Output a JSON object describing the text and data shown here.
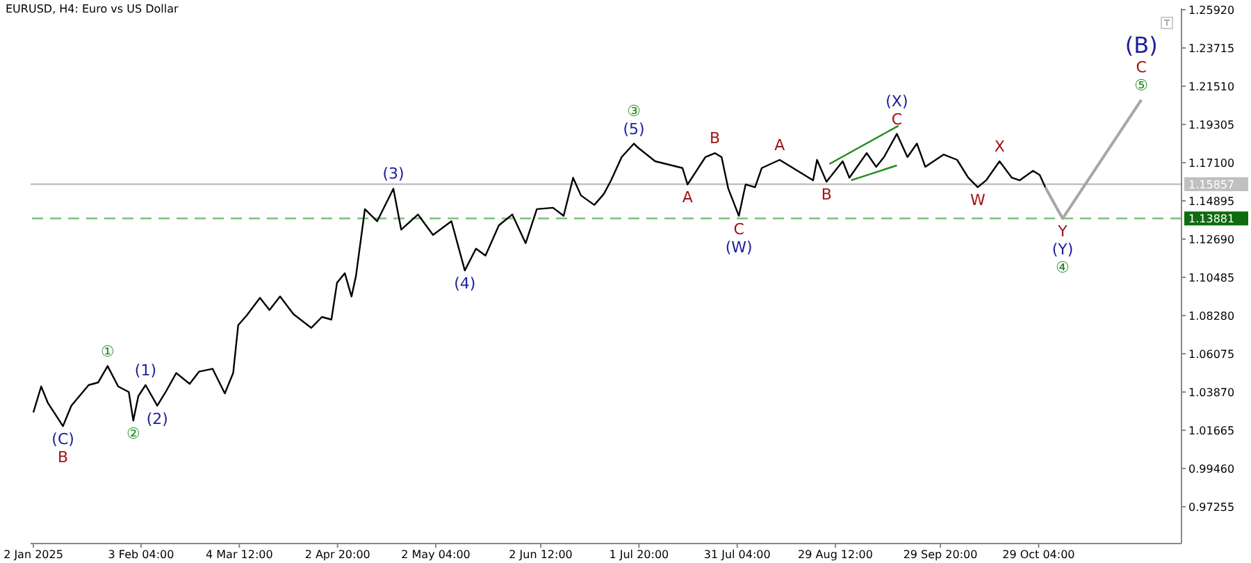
{
  "chart_data": {
    "type": "line",
    "title": "EURUSD, H4:  Euro vs US Dollar",
    "marker": "none",
    "xlim": [
      "2025-01-01T04:00",
      "2025-12-10T20:00"
    ],
    "xticks": [
      {
        "value": "2025-01-02T00:00",
        "label": "2 Jan 2025"
      },
      {
        "value": "2025-02-03T04:00",
        "label": "3 Feb 04:00"
      },
      {
        "value": "2025-03-04T12:00",
        "label": "4 Mar 12:00"
      },
      {
        "value": "2025-04-02T20:00",
        "label": "2 Apr 20:00"
      },
      {
        "value": "2025-05-02T04:00",
        "label": "2 May 04:00"
      },
      {
        "value": "2025-06-02T12:00",
        "label": "2 Jun 12:00"
      },
      {
        "value": "2025-07-01T20:00",
        "label": "1 Jul 20:00"
      },
      {
        "value": "2025-07-31T04:00",
        "label": "31 Jul 04:00"
      },
      {
        "value": "2025-08-29T12:00",
        "label": "29 Aug 12:00"
      },
      {
        "value": "2025-09-29T20:00",
        "label": "29 Sep 20:00"
      },
      {
        "value": "2025-10-29T04:00",
        "label": "29 Oct 04:00"
      }
    ],
    "ylim": [
      0.9513,
      1.26
    ],
    "yticks": [
      {
        "value": 0.97255,
        "label": "0.97255"
      },
      {
        "value": 0.9946,
        "label": "0.99460"
      },
      {
        "value": 1.01665,
        "label": "1.01665"
      },
      {
        "value": 1.0387,
        "label": "1.03870"
      },
      {
        "value": 1.06075,
        "label": "1.06075"
      },
      {
        "value": 1.0828,
        "label": "1.08280"
      },
      {
        "value": 1.10485,
        "label": "1.10485"
      },
      {
        "value": 1.1269,
        "label": "1.12690"
      },
      {
        "value": 1.14895,
        "label": "1.14895"
      },
      {
        "value": 1.171,
        "label": "1.17100"
      },
      {
        "value": 1.19305,
        "label": "1.19305"
      },
      {
        "value": 1.2151,
        "label": "1.21510"
      },
      {
        "value": 1.23715,
        "label": "1.23715"
      },
      {
        "value": 1.2592,
        "label": "1.25920"
      }
    ],
    "series": [
      {
        "color": "#000000",
        "line_style": "solid",
        "x": [
          "2025-01-02T00:00",
          "2025-01-04T08:00",
          "2025-01-06T08:00",
          "2025-01-10T20:00",
          "2025-01-13T08:00",
          "2025-01-18T12:00",
          "2025-01-21T08:00",
          "2025-01-24T04:00",
          "2025-01-27T08:00",
          "2025-01-30T12:00",
          "2025-01-31T20:00",
          "2025-02-02T08:00",
          "2025-02-04T12:00",
          "2025-02-08T00:00",
          "2025-02-10T12:00",
          "2025-02-13T16:00",
          "2025-02-17T16:00",
          "2025-02-20T12:00",
          "2025-02-24T12:00",
          "2025-02-28T04:00",
          "2025-03-02T16:00",
          "2025-03-04T04:00",
          "2025-03-06T16:00",
          "2025-03-10T16:00",
          "2025-03-13T12:00",
          "2025-03-16T16:00",
          "2025-03-20T16:00",
          "2025-03-26T00:00",
          "2025-03-29T04:00",
          "2025-04-01T00:00",
          "2025-04-02T16:00",
          "2025-04-05T00:00",
          "2025-04-07T00:00",
          "2025-04-08T08:00",
          "2025-04-11T00:00",
          "2025-04-14T16:00",
          "2025-04-19T12:00",
          "2025-04-21T20:00",
          "2025-04-26T20:00",
          "2025-05-01T08:00",
          "2025-05-06T20:00",
          "2025-05-10T20:00",
          "2025-05-14T04:00",
          "2025-05-17T00:00",
          "2025-05-21T00:00",
          "2025-05-25T00:00",
          "2025-05-29T00:00",
          "2025-06-01T08:00",
          "2025-06-06T04:00",
          "2025-06-09T08:00",
          "2025-06-12T04:00",
          "2025-06-14T12:00",
          "2025-06-18T12:00",
          "2025-06-21T08:00",
          "2025-06-23T12:00",
          "2025-06-26T16:00",
          "2025-06-30T08:00",
          "2025-07-01T12:00",
          "2025-07-06T16:00",
          "2025-07-14T20:00",
          "2025-07-16T08:00",
          "2025-07-21T16:00",
          "2025-07-24T12:00",
          "2025-07-26T12:00",
          "2025-07-28T12:00",
          "2025-07-31T16:00",
          "2025-08-02T16:00",
          "2025-08-05T12:00",
          "2025-08-07T12:00",
          "2025-08-12T20:00",
          "2025-08-16T20:00",
          "2025-08-22T20:00",
          "2025-08-24T00:00",
          "2025-08-26T20:00",
          "2025-08-31T16:00",
          "2025-09-02T16:00",
          "2025-09-07T20:00",
          "2025-09-10T16:00",
          "2025-09-13T00:00",
          "2025-09-16T20:00",
          "2025-09-20T00:00",
          "2025-09-22T20:00",
          "2025-09-25T08:00",
          "2025-09-30T20:00",
          "2025-10-04T20:00",
          "2025-10-08T04:00",
          "2025-10-11T00:00",
          "2025-10-13T12:00",
          "2025-10-17T12:00",
          "2025-10-21T04:00",
          "2025-10-23T12:00",
          "2025-10-27T12:00",
          "2025-10-29T12:00",
          "2025-10-31T04:00"
        ],
        "values": [
          1.0269,
          1.0419,
          1.0324,
          1.019,
          1.0308,
          1.0427,
          1.0442,
          1.0537,
          1.0419,
          1.0387,
          1.0222,
          1.0363,
          1.0427,
          1.0308,
          1.0387,
          1.0497,
          1.0434,
          1.0505,
          1.0521,
          1.0379,
          1.0497,
          1.0773,
          1.0828,
          1.093,
          1.086,
          1.0938,
          1.0836,
          1.0757,
          1.082,
          1.0805,
          1.1017,
          1.1072,
          1.0938,
          1.1057,
          1.1442,
          1.1372,
          1.156,
          1.1324,
          1.1411,
          1.1293,
          1.1372,
          1.1088,
          1.1214,
          1.1174,
          1.1348,
          1.1411,
          1.1245,
          1.1442,
          1.145,
          1.1403,
          1.1623,
          1.1521,
          1.1466,
          1.1529,
          1.1608,
          1.1742,
          1.182,
          1.1797,
          1.1718,
          1.1679,
          1.1584,
          1.1742,
          1.1765,
          1.1742,
          1.156,
          1.1403,
          1.1584,
          1.1568,
          1.1679,
          1.1726,
          1.1679,
          1.1608,
          1.1726,
          1.16,
          1.1718,
          1.1623,
          1.1765,
          1.1686,
          1.1742,
          1.1876,
          1.1742,
          1.182,
          1.1686,
          1.1757,
          1.1726,
          1.1623,
          1.1568,
          1.1608,
          1.1718,
          1.1623,
          1.1608,
          1.1663,
          1.1639,
          1.1568
        ]
      },
      {
        "color": "#a6a6a6",
        "line_style": "solid",
        "x": [
          "2025-10-31T04:00",
          "2025-11-05T08:00",
          "2025-11-28T20:00"
        ],
        "values": [
          1.1568,
          1.1388,
          1.2072
        ]
      },
      {
        "color": "#1e8c1e",
        "line_style": "solid",
        "x": [
          "2025-08-27T16:00",
          "2025-09-17T08:00"
        ],
        "values": [
          1.1702,
          1.1923
        ]
      },
      {
        "color": "#1e8c1e",
        "line_style": "solid",
        "x": [
          "2025-09-03T04:00",
          "2025-09-16T20:00"
        ],
        "values": [
          1.1608,
          1.1694
        ]
      }
    ],
    "ref_lines": [
      {
        "axis": "y",
        "value": 1.15857,
        "label": "1.15857",
        "color": "#c0c0c0",
        "line_style": "solid"
      },
      {
        "axis": "y",
        "value": 1.13881,
        "label": "1.13881",
        "color": "#7cbf7c",
        "line_style": "dashed"
      }
    ],
    "annotations": [
      {
        "text": "(C)",
        "x": "2025-01-10T20:00",
        "y": 1.019
      },
      {
        "text": "B",
        "x": "2025-01-10T20:00",
        "y": 1.019
      },
      {
        "text": "①",
        "x": "2025-01-24T04:00",
        "y": 1.0537
      },
      {
        "text": "(1)",
        "x": "2025-02-04T12:00",
        "y": 1.0427
      },
      {
        "text": "②",
        "x": "2025-01-31T20:00",
        "y": 1.0222
      },
      {
        "text": "(2)",
        "x": "2025-02-08T00:00",
        "y": 1.0308
      },
      {
        "text": "(3)",
        "x": "2025-04-19T12:00",
        "y": 1.156
      },
      {
        "text": "(4)",
        "x": "2025-05-10T20:00",
        "y": 1.1088
      },
      {
        "text": "(5)",
        "x": "2025-06-30T08:00",
        "y": 1.182
      },
      {
        "text": "③",
        "x": "2025-06-30T08:00",
        "y": 1.182
      },
      {
        "text": "A",
        "x": "2025-07-16T08:00",
        "y": 1.1584
      },
      {
        "text": "B",
        "x": "2025-07-24T12:00",
        "y": 1.1765
      },
      {
        "text": "C",
        "x": "2025-07-31T16:00",
        "y": 1.1403
      },
      {
        "text": "(W)",
        "x": "2025-07-31T16:00",
        "y": 1.1403
      },
      {
        "text": "A",
        "x": "2025-08-12T20:00",
        "y": 1.1726
      },
      {
        "text": "B",
        "x": "2025-08-26T20:00",
        "y": 1.16
      },
      {
        "text": "C",
        "x": "2025-09-16T20:00",
        "y": 1.1876
      },
      {
        "text": "(X)",
        "x": "2025-09-16T20:00",
        "y": 1.1876
      },
      {
        "text": "W",
        "x": "2025-10-11T00:00",
        "y": 1.1568
      },
      {
        "text": "X",
        "x": "2025-10-17T12:00",
        "y": 1.1718
      },
      {
        "text": "Y",
        "x": "2025-11-05T08:00",
        "y": 1.1388
      },
      {
        "text": "(Y)",
        "x": "2025-11-05T08:00",
        "y": 1.1388
      },
      {
        "text": "④",
        "x": "2025-11-05T08:00",
        "y": 1.1388
      },
      {
        "text": "⑤",
        "x": "2025-11-28T20:00",
        "y": 1.2072
      },
      {
        "text": "C",
        "x": "2025-11-28T20:00",
        "y": 1.2072
      },
      {
        "text": "(B)",
        "x": "2025-11-28T20:00",
        "y": 1.2072
      }
    ]
  }
}
